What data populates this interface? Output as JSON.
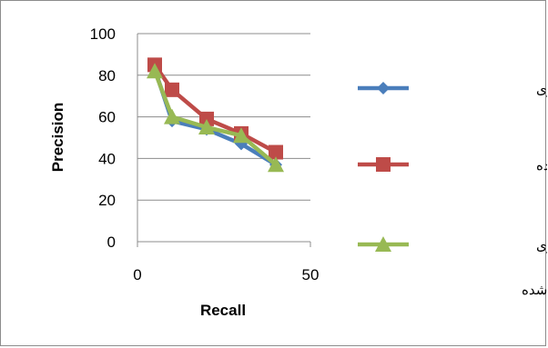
{
  "chart_data": {
    "type": "line",
    "title": "",
    "xlabel": "Recall",
    "ylabel": "Precision",
    "xlim": [
      0,
      50
    ],
    "ylim": [
      0,
      100
    ],
    "xticks": [
      "0",
      "50"
    ],
    "yticks": [
      "0",
      "20",
      "40",
      "60",
      "80",
      "100"
    ],
    "grid": "horizontal",
    "legend_position": "right",
    "series": [
      {
        "name": "فضای برداری",
        "color": "#4a7ebb",
        "marker": "diamond",
        "x": [
          5,
          10,
          20,
          30,
          40
        ],
        "y": [
          83,
          58,
          54,
          47,
          37
        ]
      },
      {
        "name": "مدل ارائه شده",
        "color": "#be4b48",
        "marker": "square",
        "x": [
          5,
          10,
          20,
          30,
          40
        ],
        "y": [
          85,
          73,
          59,
          52,
          43
        ]
      },
      {
        "name_lines": [
          "فضای برداری",
          "بسط داده شده"
        ],
        "color": "#98b954",
        "marker": "triangle",
        "x": [
          5,
          10,
          20,
          30,
          40
        ],
        "y": [
          82,
          60,
          55,
          51,
          37
        ]
      }
    ]
  }
}
